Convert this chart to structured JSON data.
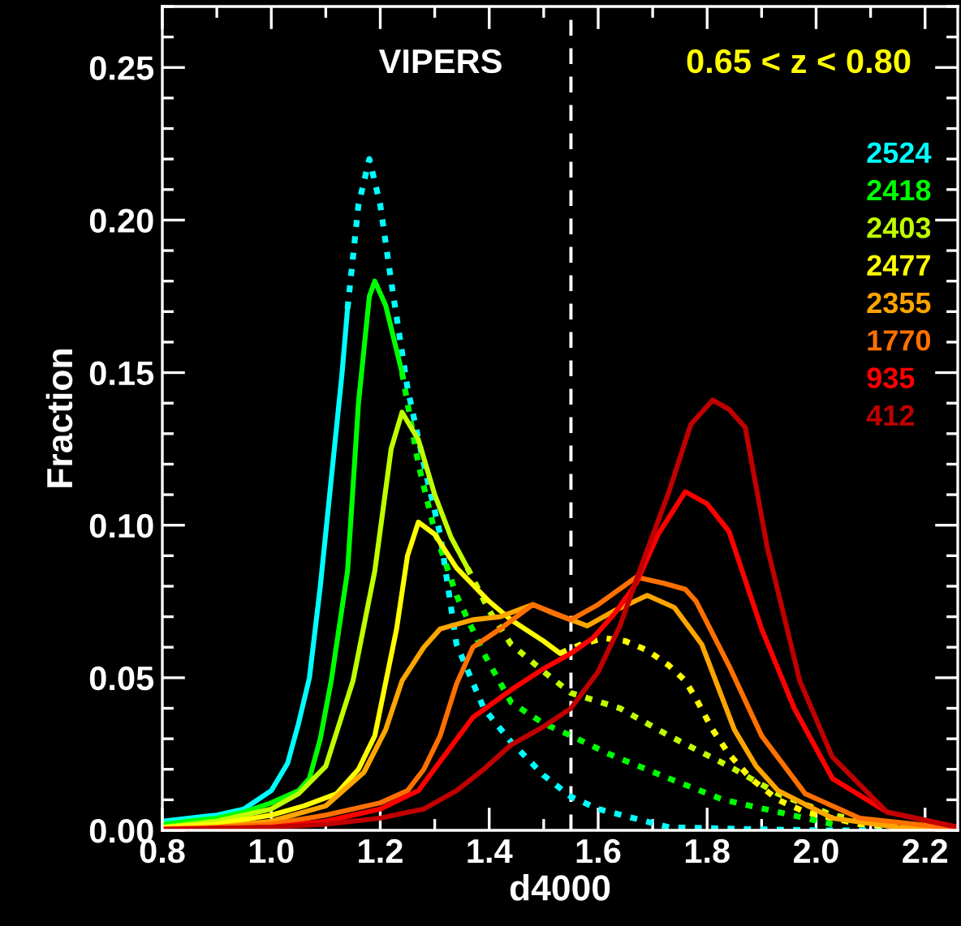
{
  "chart_data": {
    "type": "line",
    "xlabel": "d4000",
    "ylabel": "Fraction",
    "annotations": [
      "VIPERS",
      "0.65 < z < 0.80"
    ],
    "xlim": [
      0.8,
      2.26
    ],
    "ylim": [
      0,
      0.27
    ],
    "xticks": [
      {
        "value": 0.8,
        "label": "0.8"
      },
      {
        "value": 1.0,
        "label": "1.0"
      },
      {
        "value": 1.2,
        "label": "1.2"
      },
      {
        "value": 1.4,
        "label": "1.4"
      },
      {
        "value": 1.6,
        "label": "1.6"
      },
      {
        "value": 1.8,
        "label": "1.8"
      },
      {
        "value": 2.0,
        "label": "2.0"
      },
      {
        "value": 2.2,
        "label": "2.2"
      }
    ],
    "yticks": [
      {
        "value": 0,
        "label": "0.00"
      },
      {
        "value": 0.05,
        "label": "0.05"
      },
      {
        "value": 0.1,
        "label": "0.10"
      },
      {
        "value": 0.15,
        "label": "0.15"
      },
      {
        "value": 0.2,
        "label": "0.20"
      },
      {
        "value": 0.25,
        "label": "0.25"
      }
    ],
    "grid": false,
    "legend": "right",
    "marker": "none",
    "ref_lines": [
      {
        "axis": "x",
        "value": 1.55,
        "color": "#ffffff",
        "line_style": "dashed"
      }
    ],
    "series": [
      {
        "name": "2524",
        "color": "#00ffff",
        "line_style": "solid",
        "x": [
          0.8,
          0.9,
          0.95,
          1.0,
          1.03,
          1.05,
          1.07,
          1.09,
          1.11,
          1.13,
          1.14
        ],
        "values": [
          0.003,
          0.005,
          0.007,
          0.013,
          0.022,
          0.035,
          0.05,
          0.08,
          0.115,
          0.15,
          0.171
        ]
      },
      {
        "color": "#00ffff",
        "line_style": "dotted",
        "x": [
          1.14,
          1.16,
          1.18,
          1.2,
          1.22,
          1.25,
          1.28,
          1.31,
          1.34,
          1.39,
          1.44,
          1.5,
          1.55,
          1.6,
          1.73,
          1.85,
          2.0,
          2.26
        ],
        "values": [
          0.171,
          0.205,
          0.22,
          0.205,
          0.18,
          0.145,
          0.12,
          0.097,
          0.061,
          0.04,
          0.029,
          0.018,
          0.011,
          0.007,
          0.001,
          0.0005,
          0,
          0
        ]
      },
      {
        "name": "2418",
        "color": "#00ff00",
        "line_style": "solid",
        "x": [
          0.8,
          0.9,
          0.95,
          1.0,
          1.05,
          1.07,
          1.09,
          1.11,
          1.14,
          1.16,
          1.18,
          1.19,
          1.21,
          1.24
        ],
        "values": [
          0.002,
          0.004,
          0.006,
          0.009,
          0.013,
          0.017,
          0.03,
          0.049,
          0.085,
          0.14,
          0.175,
          0.18,
          0.172,
          0.15
        ]
      },
      {
        "color": "#00ff00",
        "line_style": "dotted",
        "x": [
          1.24,
          1.27,
          1.3,
          1.34,
          1.39,
          1.44,
          1.5,
          1.55,
          1.62,
          1.73,
          1.83,
          1.93,
          2.03
        ],
        "values": [
          0.15,
          0.12,
          0.098,
          0.077,
          0.058,
          0.042,
          0.035,
          0.031,
          0.025,
          0.017,
          0.01,
          0.006,
          0.002
        ]
      },
      {
        "name": "2403",
        "color": "#c0ff00",
        "line_style": "solid",
        "x": [
          0.8,
          0.9,
          1.0,
          1.05,
          1.1,
          1.15,
          1.19,
          1.22,
          1.24,
          1.27,
          1.3,
          1.33,
          1.36
        ],
        "values": [
          0.001,
          0.003,
          0.007,
          0.012,
          0.021,
          0.049,
          0.085,
          0.125,
          0.137,
          0.128,
          0.11,
          0.096,
          0.086
        ]
      },
      {
        "color": "#c0ff00",
        "line_style": "dotted",
        "x": [
          1.36,
          1.4,
          1.44,
          1.5,
          1.55,
          1.64,
          1.73,
          1.84,
          1.93,
          2.03,
          2.15,
          2.26
        ],
        "values": [
          0.086,
          0.072,
          0.061,
          0.052,
          0.045,
          0.04,
          0.031,
          0.021,
          0.012,
          0.005,
          0.001,
          0
        ]
      },
      {
        "name": "2477",
        "color": "#ffff00",
        "line_style": "solid",
        "x": [
          0.8,
          0.9,
          1.0,
          1.06,
          1.12,
          1.16,
          1.19,
          1.23,
          1.25,
          1.27,
          1.3,
          1.34,
          1.4,
          1.44,
          1.5,
          1.53
        ],
        "values": [
          0.001,
          0.002,
          0.005,
          0.008,
          0.012,
          0.02,
          0.031,
          0.066,
          0.09,
          0.101,
          0.097,
          0.086,
          0.075,
          0.069,
          0.062,
          0.058
        ]
      },
      {
        "color": "#ffff00",
        "line_style": "dotted",
        "x": [
          1.53,
          1.57,
          1.61,
          1.65,
          1.69,
          1.73,
          1.76,
          1.78,
          1.81,
          1.84,
          1.88,
          1.93,
          1.98,
          2.08,
          2.26
        ],
        "values": [
          0.058,
          0.061,
          0.063,
          0.062,
          0.059,
          0.054,
          0.049,
          0.043,
          0.033,
          0.025,
          0.017,
          0.01,
          0.006,
          0.002,
          0
        ]
      },
      {
        "name": "2355",
        "color": "#ffa500",
        "line_style": "solid",
        "x": [
          0.8,
          0.9,
          1.0,
          1.1,
          1.17,
          1.21,
          1.24,
          1.28,
          1.31,
          1.37,
          1.42,
          1.48,
          1.52,
          1.58,
          1.63,
          1.69,
          1.74,
          1.79,
          1.82,
          1.85,
          1.89,
          1.93,
          2.03,
          2.15,
          2.26
        ],
        "values": [
          0.0005,
          0.001,
          0.003,
          0.008,
          0.019,
          0.033,
          0.049,
          0.06,
          0.066,
          0.069,
          0.07,
          0.074,
          0.071,
          0.067,
          0.072,
          0.077,
          0.073,
          0.061,
          0.047,
          0.033,
          0.021,
          0.013,
          0.004,
          0.001,
          0
        ]
      },
      {
        "name": "1770",
        "color": "#ff7000",
        "line_style": "solid",
        "x": [
          0.8,
          0.9,
          1.0,
          1.1,
          1.2,
          1.25,
          1.28,
          1.31,
          1.34,
          1.37,
          1.42,
          1.48,
          1.55,
          1.6,
          1.67,
          1.72,
          1.76,
          1.78,
          1.84,
          1.9,
          1.98,
          2.08,
          2.26
        ],
        "values": [
          0.0003,
          0.001,
          0.002,
          0.005,
          0.009,
          0.013,
          0.02,
          0.031,
          0.048,
          0.06,
          0.066,
          0.074,
          0.069,
          0.074,
          0.083,
          0.081,
          0.079,
          0.075,
          0.054,
          0.031,
          0.012,
          0.004,
          0.0005
        ]
      },
      {
        "name": "935",
        "color": "#ff0000",
        "line_style": "solid",
        "x": [
          0.8,
          1.0,
          1.1,
          1.2,
          1.27,
          1.32,
          1.37,
          1.44,
          1.5,
          1.55,
          1.59,
          1.63,
          1.67,
          1.71,
          1.76,
          1.8,
          1.84,
          1.9,
          1.96,
          2.03,
          2.13,
          2.26
        ],
        "values": [
          0.0003,
          0.001,
          0.003,
          0.007,
          0.013,
          0.025,
          0.037,
          0.046,
          0.053,
          0.058,
          0.063,
          0.071,
          0.081,
          0.097,
          0.111,
          0.107,
          0.098,
          0.066,
          0.04,
          0.017,
          0.006,
          0.001
        ]
      },
      {
        "name": "412",
        "color": "#c00000",
        "line_style": "solid",
        "x": [
          0.8,
          1.0,
          1.1,
          1.2,
          1.28,
          1.34,
          1.39,
          1.44,
          1.5,
          1.55,
          1.6,
          1.64,
          1.68,
          1.73,
          1.77,
          1.81,
          1.84,
          1.87,
          1.91,
          1.97,
          2.03,
          2.13,
          2.26
        ],
        "values": [
          0.0002,
          0.001,
          0.002,
          0.004,
          0.007,
          0.013,
          0.02,
          0.028,
          0.034,
          0.04,
          0.052,
          0.067,
          0.087,
          0.111,
          0.133,
          0.141,
          0.138,
          0.132,
          0.093,
          0.049,
          0.024,
          0.006,
          0.001
        ]
      }
    ]
  }
}
